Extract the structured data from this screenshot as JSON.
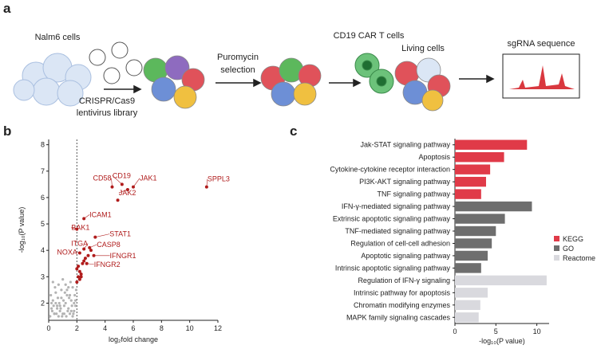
{
  "panels": [
    "a",
    "b",
    "c"
  ],
  "schematic": {
    "steps": [
      "Nalm6 cells",
      "CRISPR/Cas9",
      "lentivirus library",
      "Puromycin",
      "selection",
      "CD19 CAR T cells",
      "Living cells",
      "sgRNA sequence"
    ]
  },
  "chart_data": [
    {
      "type": "scatter",
      "xlabel": "log₂fold change",
      "ylabel": "-log₁₀(P value)",
      "xlim": [
        0,
        12
      ],
      "ylim": [
        1.35,
        8.2
      ],
      "xticks": [
        0,
        2,
        4,
        6,
        8,
        10,
        12
      ],
      "yticks": [
        2,
        3,
        4,
        5,
        6,
        7,
        8
      ],
      "threshold_x": 2,
      "series": [
        {
          "color": "#b3b3b3",
          "x": [
            0.1,
            0.2,
            0.3,
            0.4,
            0.5,
            0.6,
            0.7,
            0.8,
            0.9,
            1.0,
            1.1,
            1.2,
            1.3,
            1.4,
            1.5,
            1.6,
            1.7,
            1.8,
            1.9,
            0.15,
            0.35,
            0.55,
            0.75,
            0.95,
            1.15,
            1.35,
            1.55,
            1.75,
            1.95,
            0.25,
            0.45,
            0.65,
            0.85,
            1.05,
            1.25,
            1.45,
            1.65,
            1.85,
            0.3,
            0.7,
            1.1,
            1.5,
            1.9,
            0.5,
            0.9,
            1.3,
            1.7,
            0.2,
            0.6,
            1.0,
            1.4,
            1.8,
            0.4,
            1.2,
            1.6,
            0.8
          ],
          "values": [
            1.5,
            1.8,
            2.1,
            1.6,
            2.4,
            1.9,
            2.7,
            1.7,
            2.2,
            2.9,
            1.6,
            2.0,
            2.5,
            1.8,
            2.3,
            1.7,
            2.6,
            2.0,
            1.9,
            2.3,
            1.9,
            1.6,
            2.0,
            1.5,
            2.4,
            1.7,
            2.8,
            1.6,
            2.5,
            1.7,
            2.6,
            2.2,
            1.8,
            2.1,
            1.5,
            2.2,
            1.9,
            2.3,
            2.8,
            1.5,
            1.9,
            1.6,
            2.1,
            2.0,
            2.5,
            2.3,
            1.5,
            2.0,
            1.8,
            1.6,
            2.6,
            1.7,
            1.6,
            2.7,
            2.1,
            1.9
          ]
        },
        {
          "color": "#b01c1c",
          "x": [
            2.0,
            2.1,
            2.2,
            2.1,
            2.3,
            2.2,
            2.4,
            2.0,
            2.6,
            2.8,
            3.0,
            2.5,
            2.3,
            4.9
          ],
          "values": [
            2.8,
            3.0,
            3.2,
            3.4,
            3.0,
            2.9,
            3.5,
            3.3,
            3.7,
            3.8,
            4.0,
            3.6,
            3.1,
            5.9
          ]
        },
        {
          "color": "#b01c1c",
          "x": [
            11.2,
            6.0,
            5.2,
            4.5,
            5.6,
            2.5,
            2.0,
            3.3,
            2.9,
            2.5,
            2.2,
            3.2,
            2.7
          ],
          "values": [
            6.4,
            6.4,
            6.5,
            6.4,
            6.3,
            5.2,
            4.8,
            4.5,
            4.1,
            4.05,
            3.9,
            3.8,
            3.5
          ],
          "labels": [
            "SPPL3",
            "JAK1",
            "CD19",
            "CD58",
            "JAK2",
            "ICAM1",
            "BAK1",
            "STAT1",
            "CASP8",
            "ITGA",
            "NOXA",
            "IFNGR1",
            "IFNGR2"
          ]
        }
      ]
    },
    {
      "type": "barh",
      "xlabel": "-log₁₀(P value)",
      "xlim": [
        0,
        11.5
      ],
      "xticks": [
        0,
        5,
        10
      ],
      "categories": [
        "Jak-STAT signaling pathway",
        "Apoptosis",
        "Cytokine-cytokine receptor interaction",
        "PI3K-AKT signaling pathway",
        "TNF signaling pathway",
        "IFN-γ-mediated signaling pathway",
        "Extrinsic apoptotic  signaling pathway",
        "TNF-mediated signaling pathway",
        "Regulation of cell-cell adhesion",
        "Apoptotic signaling pathway",
        "Intrinsic apoptotic signaling pathway",
        "Regulation of IFN-γ signaling",
        "Intrinsic pathway for apoptosis",
        "Chromatin modifying enzymes",
        "MAPK family signaling cascades"
      ],
      "series": [
        {
          "name": "KEGG",
          "color": "#e03a48",
          "values": [
            8.8,
            6.0,
            4.3,
            3.8,
            3.2,
            null,
            null,
            null,
            null,
            null,
            null,
            null,
            null,
            null,
            null
          ]
        },
        {
          "name": "GO",
          "color": "#6e6e6e",
          "values": [
            null,
            null,
            null,
            null,
            null,
            9.4,
            6.1,
            5.0,
            4.5,
            4.0,
            3.2,
            null,
            null,
            null,
            null
          ]
        },
        {
          "name": "Reactome",
          "color": "#d9d9de",
          "values": [
            null,
            null,
            null,
            null,
            null,
            null,
            null,
            null,
            null,
            null,
            null,
            11.2,
            4.0,
            3.1,
            2.9
          ]
        }
      ]
    }
  ]
}
